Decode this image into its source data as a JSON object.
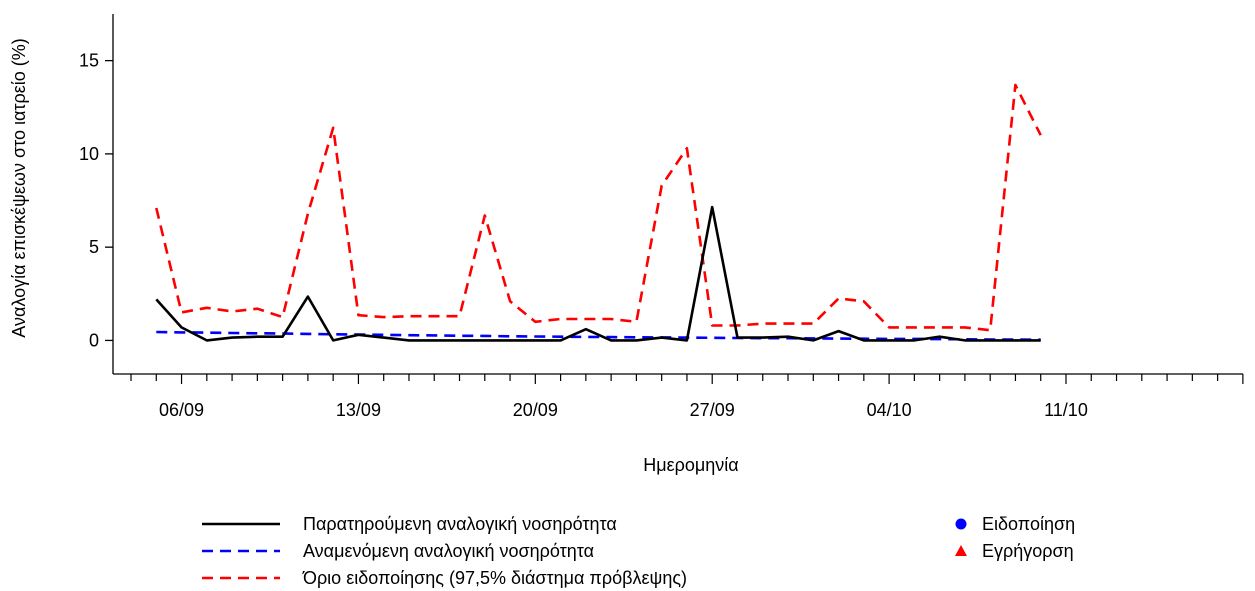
{
  "chart_data": {
    "type": "line",
    "ylabel": "Αναλογία επισκέψεων στο ιατρείο (%)",
    "xlabel": "Ημερομηνία",
    "ylim": [
      -1.8,
      17.5
    ],
    "y_ticks": [
      0,
      5,
      10,
      15
    ],
    "x_dates": [
      "04/09",
      "05/09",
      "06/09",
      "07/09",
      "08/09",
      "09/09",
      "10/09",
      "11/09",
      "12/09",
      "13/09",
      "14/09",
      "15/09",
      "16/09",
      "17/09",
      "18/09",
      "19/09",
      "20/09",
      "21/09",
      "22/09",
      "23/09",
      "24/09",
      "25/09",
      "26/09",
      "27/09",
      "28/09",
      "29/09",
      "30/09",
      "01/10",
      "02/10",
      "03/10",
      "04/10",
      "05/10",
      "06/10",
      "07/10",
      "08/10",
      "09/10"
    ],
    "x_tick_labels": [
      "06/09",
      "13/09",
      "20/09",
      "27/09",
      "04/10",
      "11/10"
    ],
    "x_axis_days": 45,
    "series": [
      {
        "name": "Παρατηρούμενη αναλογική νοσηρότητα",
        "color": "#000000",
        "dash": "solid",
        "values": [
          2.2,
          0.7,
          0.0,
          0.15,
          0.2,
          0.2,
          2.35,
          0.0,
          0.3,
          0.15,
          0.0,
          0.0,
          0.0,
          0.0,
          0.0,
          0.0,
          0.0,
          0.6,
          0.0,
          0.0,
          0.15,
          0.0,
          7.15,
          0.15,
          0.15,
          0.2,
          0.0,
          0.5,
          0.0,
          0.0,
          0.0,
          0.2,
          0.0,
          0.0,
          0.0,
          0.0
        ]
      },
      {
        "name": "Αναμενόμενη αναλογική νοσηρότητα",
        "color": "#0000ff",
        "dash": "dashed",
        "values": [
          0.45,
          0.43,
          0.42,
          0.4,
          0.38,
          0.37,
          0.35,
          0.33,
          0.32,
          0.3,
          0.28,
          0.27,
          0.25,
          0.24,
          0.22,
          0.21,
          0.2,
          0.19,
          0.18,
          0.17,
          0.16,
          0.15,
          0.14,
          0.13,
          0.12,
          0.12,
          0.11,
          0.1,
          0.09,
          0.08,
          0.08,
          0.07,
          0.06,
          0.05,
          0.05,
          0.04
        ]
      },
      {
        "name": "Όριο ειδοποίησης (97,5% διάστημα πρόβλεψης)",
        "color": "#ff0000",
        "dash": "dashed",
        "values": [
          7.1,
          1.5,
          1.75,
          1.55,
          1.7,
          1.25,
          6.8,
          11.4,
          1.35,
          1.25,
          1.3,
          1.3,
          1.3,
          6.7,
          2.1,
          1.0,
          1.15,
          1.15,
          1.15,
          1.0,
          8.3,
          10.3,
          0.8,
          0.8,
          0.9,
          0.9,
          0.9,
          2.25,
          2.1,
          0.7,
          0.7,
          0.7,
          0.7,
          0.55,
          13.7,
          11.0
        ]
      }
    ],
    "markers": [
      {
        "name": "Ειδοποίηση",
        "shape": "circle",
        "color": "#0000ff"
      },
      {
        "name": "Εγρήγορση",
        "shape": "triangle",
        "color": "#ff0000"
      }
    ],
    "legend_placement": "bottom"
  }
}
